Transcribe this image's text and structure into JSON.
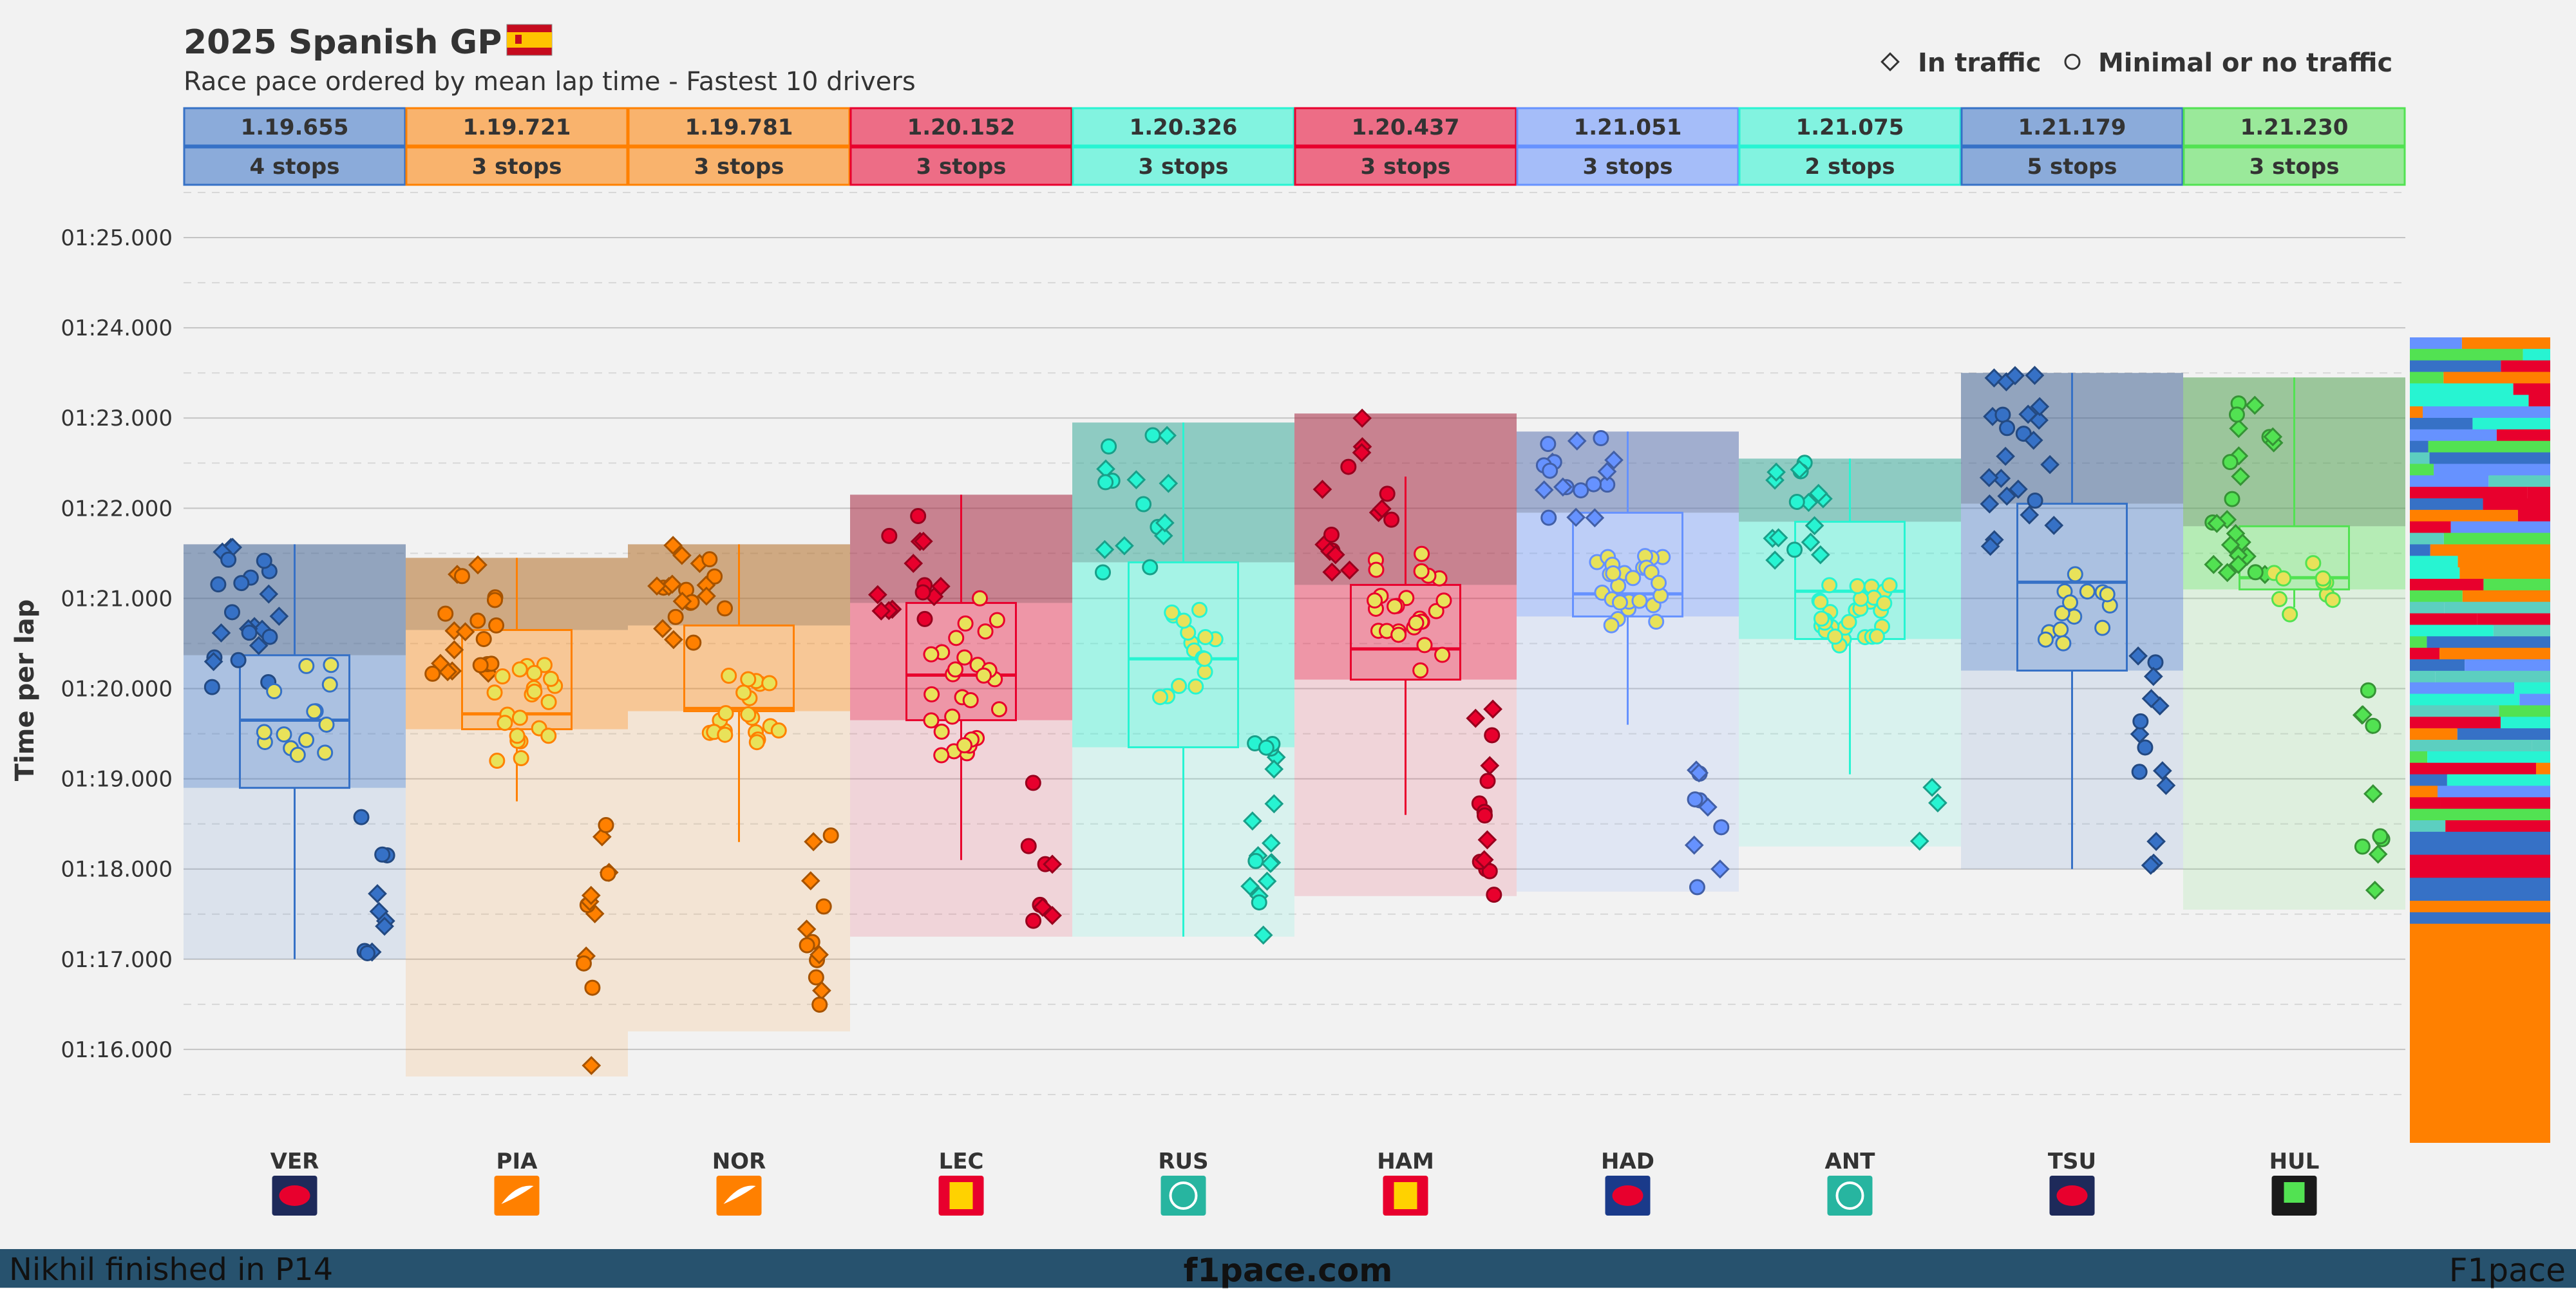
{
  "title": "2025 Spanish GP",
  "subtitle": "Race pace ordered by mean lap time - Fastest 10 drivers",
  "legend": {
    "traffic": "In traffic",
    "no_traffic": "Minimal or no traffic"
  },
  "ylabel": "Time per lap",
  "footer": {
    "left": "Nikhil finished in P14",
    "center": "f1pace.com",
    "right": "F1pace"
  },
  "chart_data": {
    "type": "box-swarm",
    "title": "2025 Spanish GP",
    "subtitle": "Race pace ordered by mean lap time - Fastest 10 drivers",
    "ylabel": "Time per lap",
    "ylim": [
      75.0,
      85.6
    ],
    "yticks": [
      {
        "v": 76,
        "label": "01:16.000"
      },
      {
        "v": 77,
        "label": "01:17.000"
      },
      {
        "v": 78,
        "label": "01:18.000"
      },
      {
        "v": 79,
        "label": "01:19.000"
      },
      {
        "v": 80,
        "label": "01:20.000"
      },
      {
        "v": 81,
        "label": "01:21.000"
      },
      {
        "v": 82,
        "label": "01:22.000"
      },
      {
        "v": 83,
        "label": "01:23.000"
      },
      {
        "v": 84,
        "label": "01:24.000"
      },
      {
        "v": 85,
        "label": "01:25.000"
      }
    ],
    "drivers": [
      {
        "code": "VER",
        "mean": "1.19.655",
        "stops": "4 stops",
        "color": "#3671C6",
        "team": "red-bull",
        "q1": 78.9,
        "median": 79.65,
        "q3": 80.37,
        "wlo": 77.0,
        "whi": 81.6,
        "range_top": 81.6,
        "range_bottom": 77.0,
        "clusters": [
          {
            "lo": 79.95,
            "hi": 81.6,
            "n": 24
          },
          {
            "lo": 79.2,
            "hi": 80.4,
            "n": 14
          },
          {
            "lo": 77.0,
            "hi": 79.0,
            "n": 10
          }
        ]
      },
      {
        "code": "PIA",
        "mean": "1.19.721",
        "stops": "3 stops",
        "color": "#FF8000",
        "team": "mclaren",
        "q1": 79.55,
        "median": 79.72,
        "q3": 80.65,
        "wlo": 78.75,
        "whi": 81.45,
        "range_top": 81.45,
        "range_bottom": 75.7,
        "clusters": [
          {
            "lo": 80.1,
            "hi": 81.45,
            "n": 20
          },
          {
            "lo": 79.2,
            "hi": 80.3,
            "n": 22
          },
          {
            "lo": 75.7,
            "hi": 78.8,
            "n": 12
          }
        ]
      },
      {
        "code": "NOR",
        "mean": "1.19.781",
        "stops": "3 stops",
        "color": "#FF8000",
        "team": "mclaren",
        "q1": 79.75,
        "median": 79.78,
        "q3": 80.7,
        "wlo": 78.3,
        "whi": 81.6,
        "range_top": 81.6,
        "range_bottom": 76.2,
        "clusters": [
          {
            "lo": 80.5,
            "hi": 81.6,
            "n": 20
          },
          {
            "lo": 79.4,
            "hi": 80.2,
            "n": 20
          },
          {
            "lo": 76.2,
            "hi": 78.6,
            "n": 12
          }
        ]
      },
      {
        "code": "LEC",
        "mean": "1.20.152",
        "stops": "3 stops",
        "color": "#E8002D",
        "team": "ferrari",
        "q1": 79.65,
        "median": 80.15,
        "q3": 80.95,
        "wlo": 78.1,
        "whi": 82.15,
        "range_top": 82.15,
        "range_bottom": 77.25,
        "clusters": [
          {
            "lo": 80.7,
            "hi": 82.15,
            "n": 14
          },
          {
            "lo": 79.2,
            "hi": 81.1,
            "n": 28
          },
          {
            "lo": 77.25,
            "hi": 79.1,
            "n": 8
          }
        ]
      },
      {
        "code": "RUS",
        "mean": "1.20.326",
        "stops": "3 stops",
        "color": "#27F4D2",
        "team": "mercedes",
        "q1": 79.35,
        "median": 80.33,
        "q3": 81.4,
        "wlo": 77.25,
        "whi": 82.95,
        "range_top": 82.95,
        "range_bottom": 77.25,
        "clusters": [
          {
            "lo": 81.1,
            "hi": 82.95,
            "n": 16
          },
          {
            "lo": 79.9,
            "hi": 80.9,
            "n": 16
          },
          {
            "lo": 77.25,
            "hi": 79.5,
            "n": 18
          }
        ]
      },
      {
        "code": "HAM",
        "mean": "1.20.437",
        "stops": "3 stops",
        "color": "#E8002D",
        "team": "ferrari",
        "q1": 80.1,
        "median": 80.44,
        "q3": 81.15,
        "wlo": 78.6,
        "whi": 82.35,
        "range_top": 83.05,
        "range_bottom": 77.7,
        "clusters": [
          {
            "lo": 81.2,
            "hi": 83.05,
            "n": 16
          },
          {
            "lo": 80.2,
            "hi": 81.6,
            "n": 26
          },
          {
            "lo": 77.7,
            "hi": 79.8,
            "n": 14
          }
        ]
      },
      {
        "code": "HAD",
        "mean": "1.21.051",
        "stops": "3 stops",
        "color": "#6692FF",
        "team": "racing-bulls",
        "q1": 80.8,
        "median": 81.05,
        "q3": 81.95,
        "wlo": 79.6,
        "whi": 82.85,
        "range_top": 82.85,
        "range_bottom": 77.75,
        "clusters": [
          {
            "lo": 81.7,
            "hi": 82.85,
            "n": 18
          },
          {
            "lo": 80.7,
            "hi": 81.5,
            "n": 26
          },
          {
            "lo": 77.75,
            "hi": 80.2,
            "n": 10
          }
        ]
      },
      {
        "code": "ANT",
        "mean": "1.21.075",
        "stops": "2 stops",
        "color": "#27F4D2",
        "team": "mercedes",
        "q1": 80.55,
        "median": 81.08,
        "q3": 81.85,
        "wlo": 79.05,
        "whi": 82.55,
        "range_top": 82.55,
        "range_bottom": 78.25,
        "clusters": [
          {
            "lo": 81.4,
            "hi": 82.55,
            "n": 16
          },
          {
            "lo": 80.4,
            "hi": 81.2,
            "n": 30
          },
          {
            "lo": 78.25,
            "hi": 79.05,
            "n": 3
          }
        ]
      },
      {
        "code": "TSU",
        "mean": "1.21.179",
        "stops": "5 stops",
        "color": "#3671C6",
        "team": "red-bull",
        "q1": 80.2,
        "median": 81.18,
        "q3": 82.05,
        "wlo": 78.0,
        "whi": 83.5,
        "range_top": 83.5,
        "range_bottom": 78.0,
        "clusters": [
          {
            "lo": 81.5,
            "hi": 83.5,
            "n": 24
          },
          {
            "lo": 80.4,
            "hi": 81.4,
            "n": 14
          },
          {
            "lo": 78.0,
            "hi": 80.4,
            "n": 14
          }
        ]
      },
      {
        "code": "HUL",
        "mean": "1.21.230",
        "stops": "3 stops",
        "color": "#52E252",
        "team": "sauber",
        "q1": 81.1,
        "median": 81.23,
        "q3": 81.8,
        "wlo": 80.9,
        "whi": 83.45,
        "range_top": 83.45,
        "range_bottom": 77.55,
        "clusters": [
          {
            "lo": 81.2,
            "hi": 83.45,
            "n": 24
          },
          {
            "lo": 80.7,
            "hi": 81.5,
            "n": 10
          },
          {
            "lo": 77.55,
            "hi": 80.0,
            "n": 10
          }
        ]
      }
    ]
  }
}
